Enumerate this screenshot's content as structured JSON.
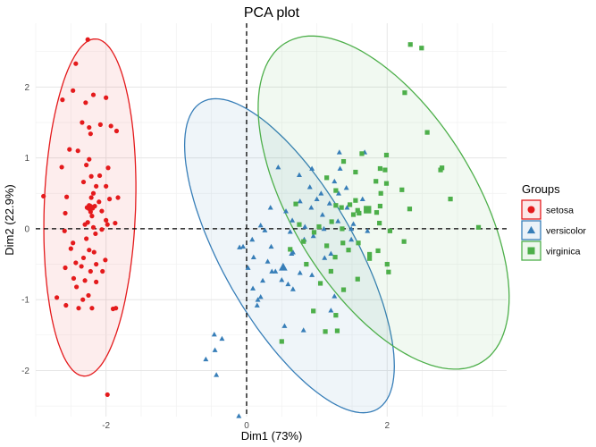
{
  "chart_data": {
    "type": "scatter",
    "title": "PCA plot",
    "xlabel": "Dim1 (73%)",
    "ylabel": "Dim2 (22.9%)",
    "xlim": [
      -3.0,
      3.7
    ],
    "ylim": [
      -2.65,
      2.9
    ],
    "x_ticks": [
      -2,
      0,
      2
    ],
    "x_tick_labels": [
      "-2",
      "0",
      "2"
    ],
    "y_ticks": [
      -2,
      -1,
      0,
      1,
      2
    ],
    "y_tick_labels": [
      "-2",
      "-1",
      "0",
      "1",
      "2"
    ],
    "grid": true,
    "legend": {
      "title": "Groups",
      "position": "right"
    },
    "reference_lines": {
      "x": 0,
      "y": 0,
      "style": "dashed"
    },
    "series": [
      {
        "name": "setosa",
        "marker": "circle",
        "color": "#e41a1c",
        "ellipse": {
          "cx": -2.23,
          "cy": 0.3,
          "rx": 0.65,
          "ry": 2.38,
          "angle": -2
        },
        "centroid": [
          -2.23,
          0.3
        ],
        "points": [
          [
            -2.26,
            2.67
          ],
          [
            -2.43,
            2.33
          ],
          [
            -2.47,
            1.95
          ],
          [
            -2.18,
            1.89
          ],
          [
            -2.0,
            1.85
          ],
          [
            -2.29,
            1.78
          ],
          [
            -2.62,
            1.82
          ],
          [
            -2.34,
            1.5
          ],
          [
            -2.08,
            1.47
          ],
          [
            -1.93,
            1.45
          ],
          [
            -2.24,
            1.43
          ],
          [
            -2.22,
            1.34
          ],
          [
            -1.85,
            1.38
          ],
          [
            -2.52,
            1.12
          ],
          [
            -2.4,
            1.1
          ],
          [
            -2.24,
            0.98
          ],
          [
            -2.28,
            0.9
          ],
          [
            -2.63,
            0.87
          ],
          [
            -1.97,
            0.86
          ],
          [
            -2.21,
            0.74
          ],
          [
            -2.09,
            0.75
          ],
          [
            -2.32,
            0.66
          ],
          [
            -2.14,
            0.6
          ],
          [
            -2.0,
            0.6
          ],
          [
            -2.18,
            0.5
          ],
          [
            -1.83,
            0.44
          ],
          [
            -1.95,
            0.42
          ],
          [
            -2.89,
            0.46
          ],
          [
            -2.56,
            0.45
          ],
          [
            -2.21,
            0.44
          ],
          [
            -2.1,
            0.38
          ],
          [
            -2.24,
            0.33
          ],
          [
            -2.16,
            0.32
          ],
          [
            -2.27,
            0.3
          ],
          [
            -2.19,
            0.29
          ],
          [
            -2.06,
            0.25
          ],
          [
            -2.22,
            0.24
          ],
          [
            -2.58,
            0.22
          ],
          [
            -2.2,
            0.18
          ],
          [
            -2.0,
            0.12
          ],
          [
            -2.26,
            0.09
          ],
          [
            -1.87,
            0.08
          ],
          [
            -2.3,
            0.06
          ],
          [
            -1.98,
            0.06
          ],
          [
            -2.18,
            0.02
          ],
          [
            -2.06,
            -0.01
          ],
          [
            -2.59,
            -0.03
          ],
          [
            -2.15,
            -0.07
          ],
          [
            -2.28,
            -0.14
          ],
          [
            -2.47,
            -0.2
          ],
          [
            -2.5,
            -0.28
          ],
          [
            -2.24,
            -0.3
          ],
          [
            -2.17,
            -0.33
          ],
          [
            -2.32,
            -0.41
          ],
          [
            -2.43,
            -0.48
          ],
          [
            -2.01,
            -0.44
          ],
          [
            -2.14,
            -0.5
          ],
          [
            -2.35,
            -0.53
          ],
          [
            -2.58,
            -0.55
          ],
          [
            -2.22,
            -0.6
          ],
          [
            -2.05,
            -0.6
          ],
          [
            -2.46,
            -0.7
          ],
          [
            -2.3,
            -0.73
          ],
          [
            -2.14,
            -0.75
          ],
          [
            -2.42,
            -0.82
          ],
          [
            -2.25,
            -0.94
          ],
          [
            -2.7,
            -0.97
          ],
          [
            -2.33,
            -1.0
          ],
          [
            -2.57,
            -1.08
          ],
          [
            -2.39,
            -1.12
          ],
          [
            -2.2,
            -1.12
          ],
          [
            -1.86,
            -1.12
          ],
          [
            -1.9,
            -1.13
          ],
          [
            -1.98,
            -2.34
          ]
        ]
      },
      {
        "name": "versicolor",
        "marker": "triangle",
        "color": "#377eb8",
        "ellipse": {
          "cx": 0.61,
          "cy": -0.38,
          "rx": 2.5,
          "ry": 0.94,
          "angle": -60
        },
        "centroid": [
          0.52,
          -0.54
        ],
        "points": [
          [
            0.45,
            0.87
          ],
          [
            0.93,
            0.85
          ],
          [
            1.33,
            0.85
          ],
          [
            1.32,
            1.08
          ],
          [
            1.68,
            1.08
          ],
          [
            0.75,
            0.76
          ],
          [
            1.25,
            0.67
          ],
          [
            1.42,
            0.58
          ],
          [
            0.9,
            0.59
          ],
          [
            1.06,
            0.5
          ],
          [
            1.31,
            0.5
          ],
          [
            1.65,
            0.42
          ],
          [
            1.0,
            0.42
          ],
          [
            1.18,
            0.36
          ],
          [
            0.76,
            0.39
          ],
          [
            0.92,
            0.3
          ],
          [
            0.34,
            0.3
          ],
          [
            1.43,
            0.3
          ],
          [
            0.56,
            0.25
          ],
          [
            1.6,
            0.24
          ],
          [
            0.65,
            0.12
          ],
          [
            1.08,
            0.2
          ],
          [
            1.52,
            0.07
          ],
          [
            1.3,
            0.11
          ],
          [
            0.2,
            0.05
          ],
          [
            0.83,
            0.03
          ],
          [
            1.1,
            0.0
          ],
          [
            1.49,
            0.0
          ],
          [
            0.26,
            -0.02
          ],
          [
            0.62,
            -0.04
          ],
          [
            0.95,
            -0.1
          ],
          [
            1.72,
            -0.03
          ],
          [
            1.49,
            -0.15
          ],
          [
            0.08,
            -0.15
          ],
          [
            0.35,
            -0.25
          ],
          [
            -0.05,
            -0.25
          ],
          [
            0.82,
            -0.15
          ],
          [
            1.2,
            -0.35
          ],
          [
            0.66,
            -0.33
          ],
          [
            1.11,
            -0.41
          ],
          [
            0.64,
            -0.35
          ],
          [
            0.1,
            -0.4
          ],
          [
            -0.1,
            -0.26
          ],
          [
            0.02,
            -0.55
          ],
          [
            0.36,
            -0.6
          ],
          [
            0.3,
            -0.46
          ],
          [
            0.76,
            -0.62
          ],
          [
            0.41,
            -0.6
          ],
          [
            0.93,
            -0.65
          ],
          [
            0.5,
            -0.72
          ],
          [
            0.23,
            -0.73
          ],
          [
            0.59,
            -0.78
          ],
          [
            0.66,
            -0.85
          ],
          [
            0.09,
            -0.84
          ],
          [
            0.2,
            -0.96
          ],
          [
            1.25,
            -0.95
          ],
          [
            0.16,
            -1.0
          ],
          [
            1.2,
            -1.15
          ],
          [
            0.54,
            -1.37
          ],
          [
            0.81,
            -1.43
          ],
          [
            -0.46,
            -1.49
          ],
          [
            -0.45,
            -1.71
          ],
          [
            -0.35,
            -1.55
          ],
          [
            -0.58,
            -1.84
          ],
          [
            -0.43,
            -2.06
          ],
          [
            -0.11,
            -2.64
          ],
          [
            0.15,
            -1.08
          ]
        ]
      },
      {
        "name": "virginica",
        "marker": "square",
        "color": "#4daf4a",
        "ellipse": {
          "cx": 1.95,
          "cy": 0.37,
          "rx": 2.65,
          "ry": 1.3,
          "angle": -58
        },
        "centroid": [
          1.72,
          0.27
        ],
        "points": [
          [
            2.33,
            2.6
          ],
          [
            2.49,
            2.55
          ],
          [
            2.25,
            1.92
          ],
          [
            2.57,
            1.36
          ],
          [
            1.64,
            1.06
          ],
          [
            1.99,
            1.04
          ],
          [
            1.38,
            0.95
          ],
          [
            1.97,
            0.83
          ],
          [
            2.78,
            0.86
          ],
          [
            2.76,
            0.83
          ],
          [
            1.55,
            0.8
          ],
          [
            1.9,
            0.85
          ],
          [
            1.14,
            0.72
          ],
          [
            1.84,
            0.67
          ],
          [
            1.99,
            0.64
          ],
          [
            2.21,
            0.55
          ],
          [
            1.27,
            0.54
          ],
          [
            1.91,
            0.5
          ],
          [
            1.55,
            0.4
          ],
          [
            2.9,
            0.42
          ],
          [
            1.35,
            0.3
          ],
          [
            0.7,
            0.35
          ],
          [
            1.9,
            0.32
          ],
          [
            1.47,
            0.34
          ],
          [
            1.27,
            0.33
          ],
          [
            1.58,
            0.26
          ],
          [
            2.32,
            0.28
          ],
          [
            1.85,
            0.23
          ],
          [
            1.6,
            0.22
          ],
          [
            1.52,
            0.2
          ],
          [
            1.21,
            0.1
          ],
          [
            0.75,
            0.06
          ],
          [
            1.89,
            0.08
          ],
          [
            1.36,
            0.0
          ],
          [
            1.03,
            0.03
          ],
          [
            3.3,
            0.02
          ],
          [
            2.04,
            -0.03
          ],
          [
            0.96,
            -0.05
          ],
          [
            1.37,
            -0.2
          ],
          [
            2.24,
            -0.18
          ],
          [
            1.14,
            -0.24
          ],
          [
            0.81,
            -0.18
          ],
          [
            1.59,
            -0.2
          ],
          [
            1.45,
            -0.3
          ],
          [
            0.62,
            -0.29
          ],
          [
            1.87,
            -0.31
          ],
          [
            1.75,
            -0.36
          ],
          [
            1.26,
            -0.4
          ],
          [
            0.85,
            -0.5
          ],
          [
            1.2,
            -0.6
          ],
          [
            2.02,
            -0.61
          ],
          [
            1.58,
            -0.71
          ],
          [
            1.05,
            -0.77
          ],
          [
            1.38,
            -0.86
          ],
          [
            0.95,
            -1.16
          ],
          [
            1.27,
            -1.22
          ],
          [
            1.29,
            -1.44
          ],
          [
            1.12,
            -1.45
          ],
          [
            0.5,
            -1.59
          ],
          [
            1.75,
            -0.42
          ],
          [
            2.0,
            -0.5
          ]
        ]
      }
    ]
  }
}
